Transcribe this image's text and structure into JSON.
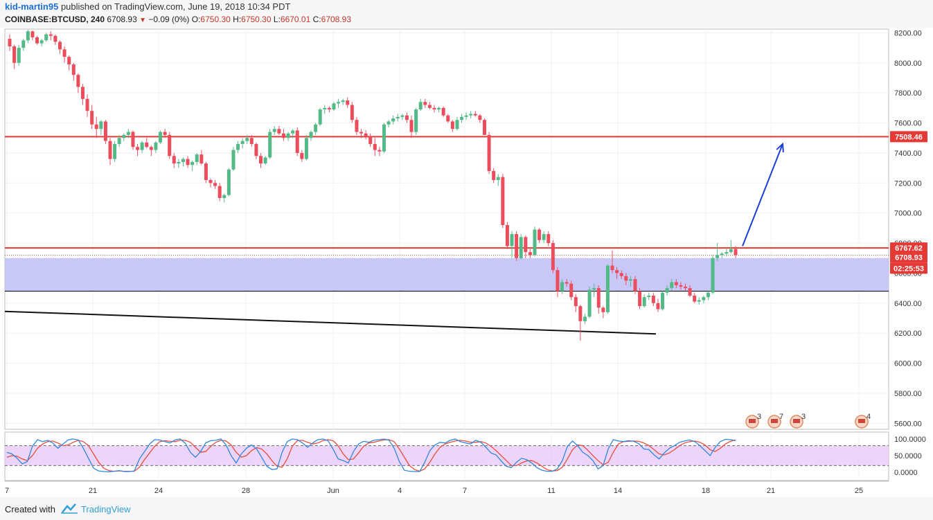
{
  "header": {
    "author": "kid-martin95",
    "published_text": "published on TradingView.com, June 19, 2018 10:34 PDT",
    "symbol": "COINBASE:BTCUSD, 240",
    "last": "6708.93",
    "change": "−0.09 (0%)",
    "o_label": "O:",
    "o_value": "6750.30",
    "h_label": "H:",
    "h_value": "6750.30",
    "l_label": "L:",
    "l_value": "6670.01",
    "c_label": "C:",
    "c_value": "6708.93"
  },
  "footer": {
    "created_with": "Created with",
    "brand": "TradingView"
  },
  "colors": {
    "up": "#53b987",
    "down": "#eb4d5c",
    "level_line": "#e53935",
    "zone": "#c5c5f8",
    "arrow": "#1a3fd6",
    "stoch_k": "#2e86de",
    "stoch_d": "#e74c3c",
    "stoch_band": "#e6c7f7"
  },
  "chart_data": {
    "type": "candlestick",
    "timeframe": "240",
    "y_ticks": [
      "8200.00",
      "8000.00",
      "7800.00",
      "7600.00",
      "7400.00",
      "7200.00",
      "7000.00",
      "6800.00",
      "6600.00",
      "6400.00",
      "6200.00",
      "6000.00",
      "5800.00",
      "5600.00"
    ],
    "x_ticks": [
      "7",
      "21",
      "24",
      "28",
      "Jun",
      "4",
      "7",
      "11",
      "14",
      "18",
      "21",
      "25"
    ],
    "ylim": [
      5560,
      8225
    ],
    "price_tags": [
      {
        "label": "7508.46",
        "kind": "level"
      },
      {
        "label": "6767.62",
        "kind": "level"
      },
      {
        "label": "6708.93",
        "kind": "last"
      },
      {
        "label": "02:25:53",
        "kind": "countdown"
      }
    ],
    "horizontal_levels": [
      7508.46,
      6767.62
    ],
    "support_zone": [
      6480,
      6700
    ],
    "trendline": {
      "from_price": 6345,
      "to_price": 6195
    },
    "target_arrow": {
      "from_price": 6780,
      "to_price": 7460
    },
    "event_badges": [
      "3",
      "7",
      "3",
      "4"
    ],
    "candles": [
      [
        8160,
        8190,
        8080,
        8110
      ],
      [
        8110,
        8120,
        7960,
        8000
      ],
      [
        8000,
        8120,
        7980,
        8100
      ],
      [
        8100,
        8160,
        8080,
        8150
      ],
      [
        8150,
        8220,
        8130,
        8210
      ],
      [
        8210,
        8215,
        8150,
        8170
      ],
      [
        8170,
        8180,
        8120,
        8130
      ],
      [
        8130,
        8160,
        8110,
        8150
      ],
      [
        8150,
        8200,
        8140,
        8190
      ],
      [
        8190,
        8210,
        8150,
        8180
      ],
      [
        8180,
        8190,
        8120,
        8140
      ],
      [
        8140,
        8150,
        8060,
        8090
      ],
      [
        8090,
        8110,
        8000,
        8040
      ],
      [
        8040,
        8050,
        7950,
        7990
      ],
      [
        7990,
        8000,
        7880,
        7920
      ],
      [
        7920,
        7930,
        7800,
        7840
      ],
      [
        7840,
        7860,
        7720,
        7760
      ],
      [
        7760,
        7790,
        7640,
        7680
      ],
      [
        7680,
        7720,
        7560,
        7590
      ],
      [
        7590,
        7640,
        7500,
        7560
      ],
      [
        7560,
        7620,
        7520,
        7610
      ],
      [
        7610,
        7620,
        7460,
        7480
      ],
      [
        7480,
        7500,
        7320,
        7360
      ],
      [
        7360,
        7480,
        7340,
        7460
      ],
      [
        7460,
        7520,
        7440,
        7500
      ],
      [
        7500,
        7530,
        7480,
        7520
      ],
      [
        7520,
        7560,
        7500,
        7540
      ],
      [
        7540,
        7550,
        7420,
        7440
      ],
      [
        7440,
        7460,
        7380,
        7420
      ],
      [
        7420,
        7480,
        7400,
        7470
      ],
      [
        7470,
        7500,
        7430,
        7440
      ],
      [
        7440,
        7450,
        7380,
        7420
      ],
      [
        7420,
        7480,
        7400,
        7470
      ],
      [
        7470,
        7550,
        7460,
        7540
      ],
      [
        7540,
        7560,
        7500,
        7520
      ],
      [
        7520,
        7540,
        7360,
        7380
      ],
      [
        7380,
        7400,
        7300,
        7330
      ],
      [
        7330,
        7360,
        7300,
        7340
      ],
      [
        7340,
        7370,
        7310,
        7360
      ],
      [
        7360,
        7380,
        7300,
        7320
      ],
      [
        7320,
        7350,
        7280,
        7340
      ],
      [
        7340,
        7400,
        7320,
        7390
      ],
      [
        7390,
        7420,
        7320,
        7330
      ],
      [
        7330,
        7340,
        7200,
        7220
      ],
      [
        7220,
        7230,
        7170,
        7200
      ],
      [
        7200,
        7220,
        7160,
        7180
      ],
      [
        7180,
        7200,
        7080,
        7100
      ],
      [
        7100,
        7130,
        7070,
        7120
      ],
      [
        7120,
        7300,
        7110,
        7290
      ],
      [
        7290,
        7440,
        7280,
        7420
      ],
      [
        7420,
        7480,
        7400,
        7460
      ],
      [
        7460,
        7500,
        7430,
        7480
      ],
      [
        7480,
        7520,
        7460,
        7500
      ],
      [
        7500,
        7520,
        7440,
        7460
      ],
      [
        7460,
        7470,
        7360,
        7380
      ],
      [
        7380,
        7400,
        7300,
        7330
      ],
      [
        7330,
        7380,
        7320,
        7370
      ],
      [
        7370,
        7560,
        7360,
        7540
      ],
      [
        7540,
        7580,
        7520,
        7560
      ],
      [
        7560,
        7580,
        7520,
        7530
      ],
      [
        7530,
        7560,
        7480,
        7500
      ],
      [
        7500,
        7540,
        7480,
        7530
      ],
      [
        7530,
        7560,
        7500,
        7550
      ],
      [
        7550,
        7570,
        7380,
        7400
      ],
      [
        7400,
        7420,
        7340,
        7360
      ],
      [
        7360,
        7520,
        7350,
        7500
      ],
      [
        7500,
        7550,
        7480,
        7540
      ],
      [
        7540,
        7600,
        7520,
        7590
      ],
      [
        7590,
        7700,
        7580,
        7690
      ],
      [
        7690,
        7720,
        7660,
        7700
      ],
      [
        7700,
        7710,
        7670,
        7690
      ],
      [
        7690,
        7740,
        7680,
        7730
      ],
      [
        7730,
        7760,
        7700,
        7740
      ],
      [
        7740,
        7760,
        7720,
        7750
      ],
      [
        7750,
        7770,
        7700,
        7720
      ],
      [
        7720,
        7740,
        7600,
        7620
      ],
      [
        7620,
        7640,
        7520,
        7540
      ],
      [
        7540,
        7560,
        7500,
        7530
      ],
      [
        7530,
        7550,
        7490,
        7510
      ],
      [
        7510,
        7530,
        7440,
        7460
      ],
      [
        7460,
        7500,
        7380,
        7420
      ],
      [
        7420,
        7440,
        7380,
        7410
      ],
      [
        7410,
        7600,
        7400,
        7590
      ],
      [
        7590,
        7620,
        7570,
        7610
      ],
      [
        7610,
        7650,
        7590,
        7630
      ],
      [
        7630,
        7660,
        7610,
        7640
      ],
      [
        7640,
        7660,
        7620,
        7650
      ],
      [
        7650,
        7670,
        7600,
        7620
      ],
      [
        7620,
        7650,
        7500,
        7540
      ],
      [
        7540,
        7700,
        7520,
        7690
      ],
      [
        7690,
        7760,
        7680,
        7740
      ],
      [
        7740,
        7760,
        7700,
        7720
      ],
      [
        7720,
        7740,
        7690,
        7700
      ],
      [
        7700,
        7720,
        7670,
        7690
      ],
      [
        7690,
        7710,
        7670,
        7700
      ],
      [
        7700,
        7710,
        7640,
        7650
      ],
      [
        7650,
        7660,
        7600,
        7610
      ],
      [
        7610,
        7620,
        7540,
        7560
      ],
      [
        7560,
        7640,
        7550,
        7620
      ],
      [
        7620,
        7660,
        7600,
        7640
      ],
      [
        7640,
        7670,
        7620,
        7650
      ],
      [
        7650,
        7680,
        7630,
        7660
      ],
      [
        7660,
        7680,
        7640,
        7650
      ],
      [
        7650,
        7660,
        7600,
        7620
      ],
      [
        7620,
        7630,
        7520,
        7520
      ],
      [
        7520,
        7540,
        7260,
        7280
      ],
      [
        7280,
        7300,
        7200,
        7220
      ],
      [
        7220,
        7260,
        7180,
        7240
      ],
      [
        7240,
        7260,
        6900,
        6920
      ],
      [
        6920,
        6940,
        6760,
        6780
      ],
      [
        6780,
        6880,
        6700,
        6860
      ],
      [
        6860,
        6880,
        6680,
        6700
      ],
      [
        6700,
        6860,
        6690,
        6840
      ],
      [
        6840,
        6850,
        6700,
        6740
      ],
      [
        6740,
        6760,
        6700,
        6720
      ],
      [
        6720,
        6910,
        6710,
        6890
      ],
      [
        6890,
        6900,
        6800,
        6820
      ],
      [
        6820,
        6880,
        6800,
        6860
      ],
      [
        6860,
        6880,
        6780,
        6800
      ],
      [
        6800,
        6820,
        6600,
        6620
      ],
      [
        6620,
        6640,
        6440,
        6480
      ],
      [
        6480,
        6560,
        6460,
        6540
      ],
      [
        6540,
        6560,
        6510,
        6530
      ],
      [
        6530,
        6550,
        6420,
        6440
      ],
      [
        6440,
        6460,
        6340,
        6380
      ],
      [
        6380,
        6390,
        6150,
        6280
      ],
      [
        6280,
        6330,
        6260,
        6310
      ],
      [
        6310,
        6510,
        6300,
        6490
      ],
      [
        6490,
        6530,
        6440,
        6500
      ],
      [
        6500,
        6520,
        6330,
        6370
      ],
      [
        6370,
        6380,
        6300,
        6340
      ],
      [
        6340,
        6660,
        6330,
        6650
      ],
      [
        6650,
        6750,
        6600,
        6620
      ],
      [
        6620,
        6640,
        6560,
        6600
      ],
      [
        6600,
        6620,
        6560,
        6580
      ],
      [
        6580,
        6600,
        6520,
        6550
      ],
      [
        6550,
        6580,
        6510,
        6560
      ],
      [
        6560,
        6580,
        6460,
        6480
      ],
      [
        6480,
        6500,
        6360,
        6380
      ],
      [
        6380,
        6460,
        6370,
        6440
      ],
      [
        6440,
        6470,
        6420,
        6450
      ],
      [
        6450,
        6470,
        6380,
        6400
      ],
      [
        6400,
        6430,
        6340,
        6360
      ],
      [
        6360,
        6480,
        6350,
        6470
      ],
      [
        6470,
        6520,
        6450,
        6500
      ],
      [
        6500,
        6560,
        6480,
        6540
      ],
      [
        6540,
        6560,
        6500,
        6520
      ],
      [
        6520,
        6540,
        6490,
        6510
      ],
      [
        6510,
        6530,
        6480,
        6500
      ],
      [
        6500,
        6520,
        6440,
        6450
      ],
      [
        6450,
        6470,
        6400,
        6410
      ],
      [
        6410,
        6440,
        6390,
        6420
      ],
      [
        6420,
        6450,
        6400,
        6440
      ],
      [
        6440,
        6480,
        6420,
        6470
      ],
      [
        6470,
        6720,
        6460,
        6700
      ],
      [
        6700,
        6800,
        6680,
        6720
      ],
      [
        6720,
        6740,
        6700,
        6730
      ],
      [
        6730,
        6760,
        6710,
        6740
      ],
      [
        6740,
        6820,
        6730,
        6760
      ],
      [
        6760,
        6780,
        6700,
        6720
      ]
    ],
    "stochastic": {
      "levels": [
        "100.0000",
        "50.0000",
        "0.0000"
      ],
      "k": [
        60,
        55,
        42,
        25,
        32,
        78,
        98,
        92,
        96,
        88,
        72,
        85,
        97,
        100,
        97,
        72,
        42,
        12,
        4,
        2,
        1,
        3,
        5,
        2,
        2,
        4,
        40,
        62,
        85,
        98,
        97,
        92,
        88,
        97,
        100,
        87,
        60,
        45,
        62,
        88,
        95,
        96,
        100,
        82,
        50,
        28,
        55,
        72,
        82,
        70,
        45,
        18,
        8,
        10,
        60,
        92,
        100,
        98,
        88,
        75,
        88,
        98,
        100,
        95,
        70,
        40,
        35,
        28,
        62,
        85,
        93,
        90,
        96,
        98,
        100,
        96,
        72,
        32,
        6,
        3,
        2,
        2,
        30,
        65,
        82,
        90,
        88,
        96,
        100,
        92,
        88,
        85,
        96,
        90,
        75,
        58,
        52,
        34,
        18,
        14,
        30,
        42,
        38,
        28,
        14,
        6,
        3,
        3,
        10,
        35,
        78,
        94,
        80,
        60,
        50,
        35,
        10,
        20,
        70,
        98,
        94,
        92,
        95,
        93,
        86,
        70,
        68,
        52,
        40,
        58,
        72,
        80,
        90,
        94,
        97,
        92,
        80,
        65,
        50,
        75,
        92,
        99,
        98,
        95
      ],
      "d": [
        45,
        50,
        48,
        40,
        35,
        50,
        72,
        85,
        92,
        94,
        88,
        80,
        82,
        90,
        96,
        92,
        80,
        55,
        30,
        12,
        5,
        3,
        4,
        3,
        3,
        3,
        15,
        38,
        58,
        78,
        92,
        95,
        93,
        92,
        96,
        96,
        90,
        75,
        60,
        62,
        78,
        90,
        96,
        94,
        82,
        60,
        45,
        50,
        65,
        74,
        70,
        55,
        35,
        18,
        15,
        40,
        78,
        95,
        96,
        90,
        85,
        88,
        95,
        98,
        95,
        80,
        55,
        38,
        40,
        58,
        78,
        88,
        90,
        94,
        97,
        98,
        92,
        70,
        45,
        20,
        8,
        3,
        10,
        30,
        55,
        75,
        85,
        90,
        94,
        96,
        94,
        90,
        90,
        92,
        88,
        78,
        65,
        50,
        35,
        20,
        20,
        28,
        34,
        35,
        28,
        18,
        8,
        4,
        5,
        15,
        40,
        68,
        82,
        80,
        66,
        50,
        35,
        22,
        30,
        60,
        85,
        92,
        93,
        94,
        93,
        88,
        80,
        68,
        55,
        52,
        58,
        68,
        80,
        88,
        92,
        94,
        90,
        82,
        68,
        62,
        72,
        85,
        93,
        97
      ]
    }
  }
}
